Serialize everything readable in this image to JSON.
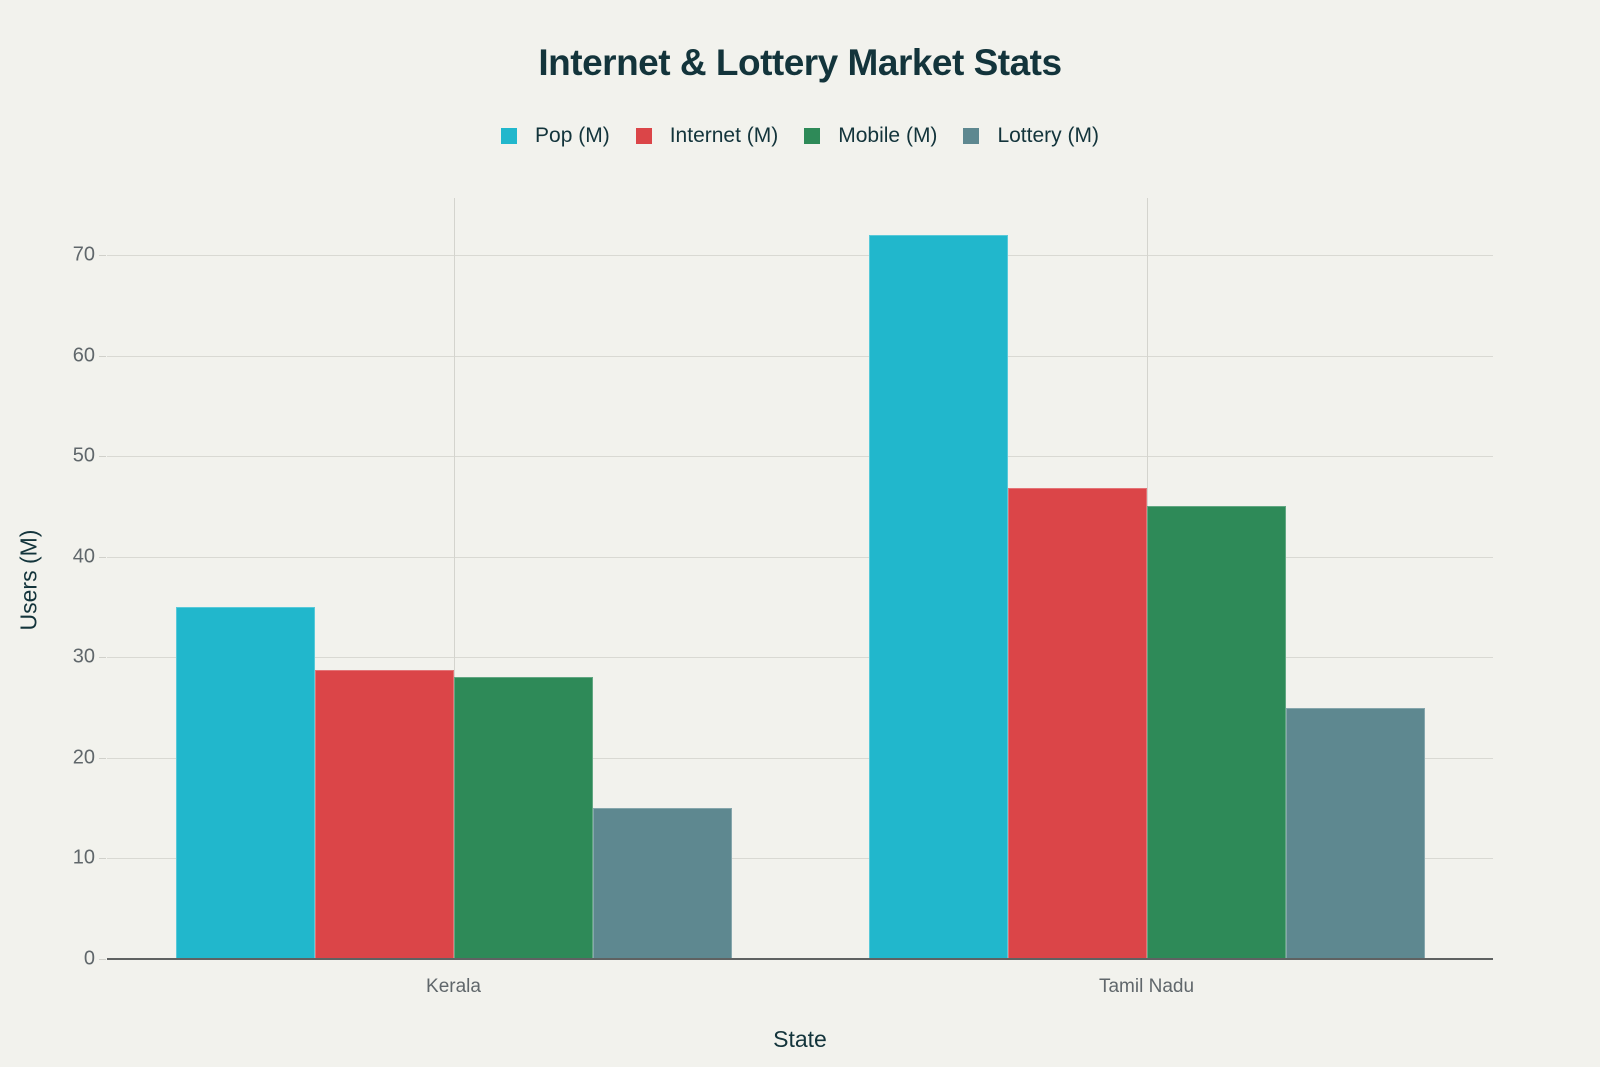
{
  "title": "Internet & Lottery Market Stats",
  "legend": [
    {
      "label": "Pop (M)",
      "color": "#21b7cc"
    },
    {
      "label": "Internet (M)",
      "color": "#db4548"
    },
    {
      "label": "Mobile (M)",
      "color": "#2e8a58"
    },
    {
      "label": "Lottery (M)",
      "color": "#5e8890"
    }
  ],
  "axes": {
    "xlabel": "State",
    "ylabel": "Users (M)",
    "yticks": [
      "0",
      "10",
      "20",
      "30",
      "40",
      "50",
      "60",
      "70"
    ],
    "xticks": [
      "Kerala",
      "Tamil Nadu"
    ]
  },
  "chart_data": {
    "type": "bar",
    "title": "Internet & Lottery Market Stats",
    "xlabel": "State",
    "ylabel": "Users (M)",
    "categories": [
      "Kerala",
      "Tamil Nadu"
    ],
    "series": [
      {
        "name": "Pop (M)",
        "color": "#21b7cc",
        "values": [
          35,
          72
        ]
      },
      {
        "name": "Internet (M)",
        "color": "#db4548",
        "values": [
          28.7,
          46.8
        ]
      },
      {
        "name": "Mobile (M)",
        "color": "#2e8a58",
        "values": [
          28,
          45
        ]
      },
      {
        "name": "Lottery (M)",
        "color": "#5e8890",
        "values": [
          15,
          25
        ]
      }
    ],
    "ylim": [
      0,
      76
    ],
    "yticks": [
      0,
      10,
      20,
      30,
      40,
      50,
      60,
      70
    ],
    "grid": true,
    "legend_position": "top-center"
  }
}
